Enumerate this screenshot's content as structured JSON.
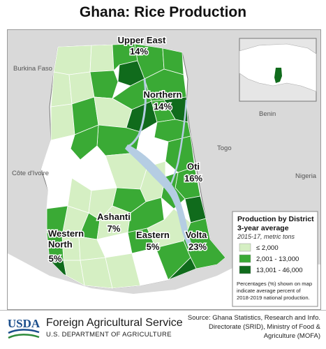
{
  "title": "Ghana: Rice Production",
  "countries": {
    "burkina_faso": "Burkina Faso",
    "togo": "Togo",
    "cote_divoire": "Côte d'Ivoire",
    "benin": "Benin",
    "nigeria": "Nigeria"
  },
  "regions": [
    {
      "name": "Upper East",
      "percent": "14%"
    },
    {
      "name": "Northern",
      "percent": "14%"
    },
    {
      "name": "Oti",
      "percent": "16%"
    },
    {
      "name": "Ashanti",
      "percent": "7%"
    },
    {
      "name": "Eastern",
      "percent": "5%"
    },
    {
      "name": "Western North",
      "percent": "5%"
    },
    {
      "name": "Volta",
      "percent": "23%"
    }
  ],
  "legend": {
    "title_line1": "Production by District",
    "title_line2": "3-year average",
    "subtitle": "2015-17, metric tons",
    "classes": [
      {
        "label": "≤ 2,000",
        "color": "#d5efc3"
      },
      {
        "label": "2,001 - 13,000",
        "color": "#3aaa35"
      },
      {
        "label": "13,001 - 46,000",
        "color": "#106b1c"
      }
    ],
    "note_lines": [
      "Percentages (%) shown on map",
      "indicate average percent of",
      "2018-2019 national production."
    ]
  },
  "colors": {
    "background": "#d9d9d9",
    "border": "#ffffff",
    "water": "#b5cde3",
    "no_data": "#ffffff",
    "low": "#d5efc3",
    "mid": "#3aaa35",
    "high": "#106b1c",
    "usda_blue": "#1b4e8c",
    "usda_green": "#2e8b3b"
  },
  "footer": {
    "logo_text": "USDA",
    "agency": "Foreign Agricultural Service",
    "department": "U.S. DEPARTMENT OF AGRICULTURE",
    "source_lines": [
      "Source: Ghana Statistics, Research and Info.",
      "Directorate (SRID), Ministry of Food &",
      "Agriculture (MOFA)"
    ]
  }
}
